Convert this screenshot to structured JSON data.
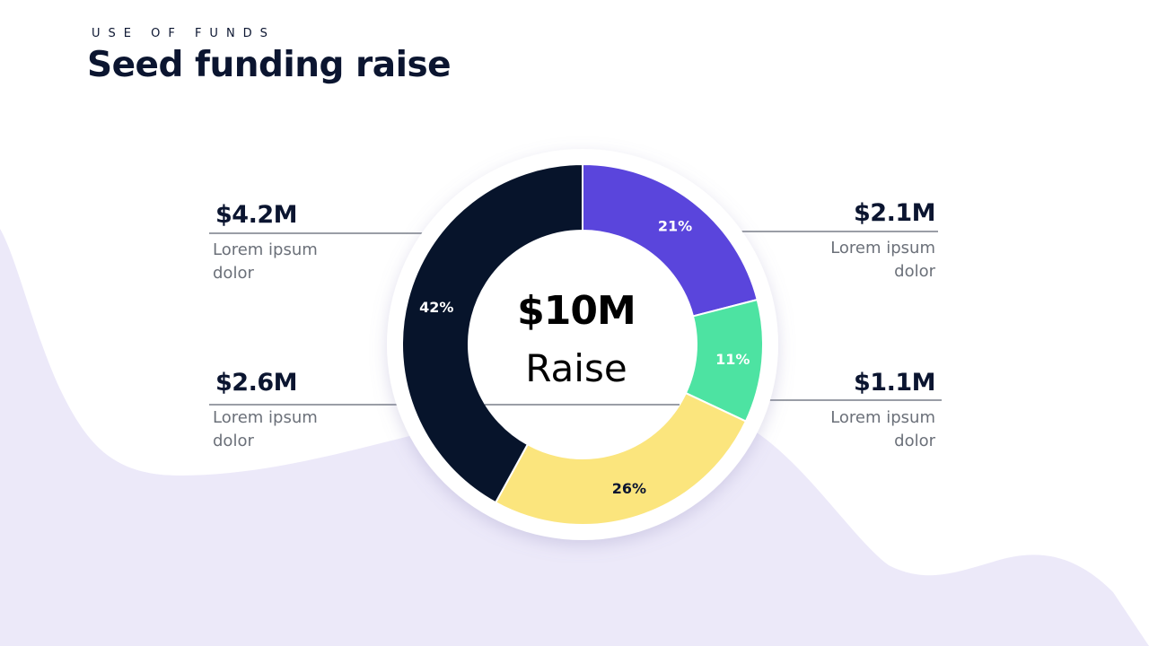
{
  "header": {
    "kicker": "USE OF FUNDS",
    "title": "Seed funding raise"
  },
  "colors": {
    "navy": "#07142b",
    "purple": "#5a45dc",
    "green": "#4de3a2",
    "yellow": "#fbe57d",
    "wave": "#ece9f9",
    "rule": "#5e6470",
    "muted_text": "#6b7079"
  },
  "center": {
    "amount": "$10M",
    "label": "Raise"
  },
  "callouts": [
    {
      "amount": "$4.2M",
      "desc": "Lorem ipsum dolor"
    },
    {
      "amount": "$2.6M",
      "desc": "Lorem ipsum dolor"
    },
    {
      "amount": "$2.1M",
      "desc": "Lorem ipsum dolor"
    },
    {
      "amount": "$1.1M",
      "desc": "Lorem ipsum dolor"
    }
  ],
  "chart_data": {
    "type": "pie",
    "variant": "donut",
    "title": "Seed funding raise",
    "start": "top",
    "direction": "clockwise",
    "categories": [
      "$2.1M",
      "$1.1M",
      "$2.6M",
      "$4.2M"
    ],
    "values": [
      21,
      11,
      26,
      42
    ],
    "labels": [
      "21%",
      "11%",
      "26%",
      "42%"
    ],
    "colors": [
      "#5a45dc",
      "#4de3a2",
      "#fbe57d",
      "#07142b"
    ],
    "label_colors": [
      "#ffffff",
      "#ffffff",
      "#0b1530",
      "#ffffff"
    ],
    "center_text": [
      "$10M",
      "Raise"
    ],
    "legend": "none"
  }
}
